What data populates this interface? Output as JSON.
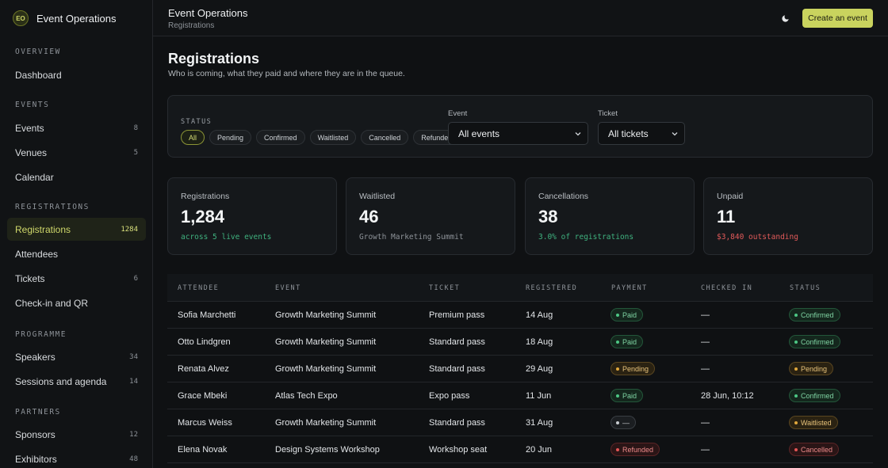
{
  "brand": {
    "initials": "EO",
    "name": "Event Operations"
  },
  "sidebar": {
    "sections": [
      {
        "title": "OVERVIEW",
        "items": [
          {
            "label": "Dashboard",
            "count": ""
          }
        ]
      },
      {
        "title": "EVENTS",
        "items": [
          {
            "label": "Events",
            "count": "8"
          },
          {
            "label": "Venues",
            "count": "5"
          },
          {
            "label": "Calendar",
            "count": ""
          }
        ]
      },
      {
        "title": "REGISTRATIONS",
        "items": [
          {
            "label": "Registrations",
            "count": "1284",
            "active": true
          },
          {
            "label": "Attendees",
            "count": ""
          },
          {
            "label": "Tickets",
            "count": "6"
          },
          {
            "label": "Check-in and QR",
            "count": ""
          }
        ]
      },
      {
        "title": "PROGRAMME",
        "items": [
          {
            "label": "Speakers",
            "count": "34"
          },
          {
            "label": "Sessions and agenda",
            "count": "14"
          }
        ]
      },
      {
        "title": "PARTNERS",
        "items": [
          {
            "label": "Sponsors",
            "count": "12"
          },
          {
            "label": "Exhibitors",
            "count": "48"
          }
        ]
      }
    ]
  },
  "header": {
    "title": "Event Operations",
    "breadcrumb": "Registrations",
    "theme_icon": "moon-icon",
    "create_label": "Create an event"
  },
  "page": {
    "title": "Registrations",
    "subtitle": "Who is coming, what they paid and where they are in the queue."
  },
  "filters": {
    "status_label": "STATUS",
    "status_options": [
      "All",
      "Pending",
      "Confirmed",
      "Waitlisted",
      "Cancelled",
      "Refunded"
    ],
    "status_selected": "All",
    "event_label": "Event",
    "event_value": "All events",
    "ticket_label": "Ticket",
    "ticket_value": "All tickets"
  },
  "stats": [
    {
      "label": "Registrations",
      "value": "1,284",
      "note": "across 5 live events",
      "tone": "green"
    },
    {
      "label": "Waitlisted",
      "value": "46",
      "note": "Growth Marketing Summit",
      "tone": "grey"
    },
    {
      "label": "Cancellations",
      "value": "38",
      "note": "3.0% of registrations",
      "tone": "green"
    },
    {
      "label": "Unpaid",
      "value": "11",
      "note": "$3,840 outstanding",
      "tone": "red"
    }
  ],
  "table": {
    "columns": [
      "ATTENDEE",
      "EVENT",
      "TICKET",
      "REGISTERED",
      "PAYMENT",
      "CHECKED IN",
      "STATUS"
    ],
    "rows": [
      {
        "attendee": "Sofia Marchetti",
        "event": "Growth Marketing Summit",
        "ticket": "Premium pass",
        "registered": "14 Aug",
        "payment": "Paid",
        "payment_tone": "green",
        "checked_in": "—",
        "status": "Confirmed",
        "status_tone": "green"
      },
      {
        "attendee": "Otto Lindgren",
        "event": "Growth Marketing Summit",
        "ticket": "Standard pass",
        "registered": "18 Aug",
        "payment": "Paid",
        "payment_tone": "green",
        "checked_in": "—",
        "status": "Confirmed",
        "status_tone": "green"
      },
      {
        "attendee": "Renata Alvez",
        "event": "Growth Marketing Summit",
        "ticket": "Standard pass",
        "registered": "29 Aug",
        "payment": "Pending",
        "payment_tone": "amber",
        "checked_in": "—",
        "status": "Pending",
        "status_tone": "amber"
      },
      {
        "attendee": "Grace Mbeki",
        "event": "Atlas Tech Expo",
        "ticket": "Expo pass",
        "registered": "11 Jun",
        "payment": "Paid",
        "payment_tone": "green",
        "checked_in": "28 Jun, 10:12",
        "status": "Confirmed",
        "status_tone": "green"
      },
      {
        "attendee": "Marcus Weiss",
        "event": "Growth Marketing Summit",
        "ticket": "Standard pass",
        "registered": "31 Aug",
        "payment": "—",
        "payment_tone": "neutral",
        "checked_in": "—",
        "status": "Waitlisted",
        "status_tone": "amber"
      },
      {
        "attendee": "Elena Novak",
        "event": "Design Systems Workshop",
        "ticket": "Workshop seat",
        "registered": "20 Jun",
        "payment": "Refunded",
        "payment_tone": "red",
        "checked_in": "—",
        "status": "Cancelled",
        "status_tone": "red"
      }
    ]
  }
}
